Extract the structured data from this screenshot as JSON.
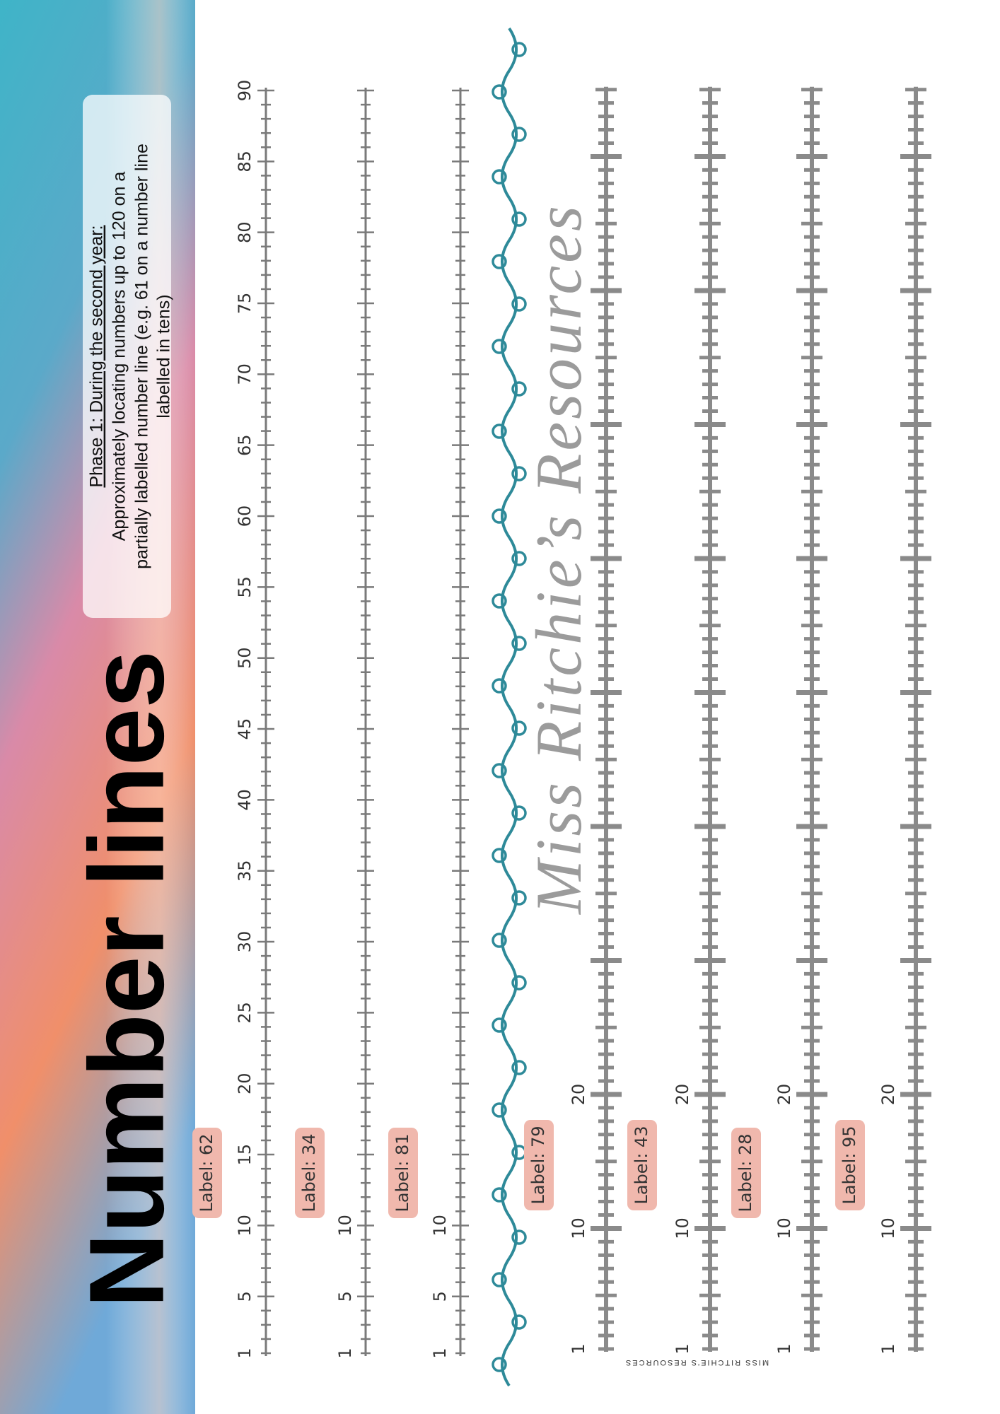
{
  "header": {
    "title": "Number lines",
    "phase_title": "Phase 1: During the second year:",
    "phase_lines": [
      "Approximately locating numbers up to 120 on a",
      "partially labelled number line (e.g. 61 on a number line",
      "labelled in tens)"
    ]
  },
  "number_lines": [
    {
      "label": "Label: 62",
      "tick_labels": [
        1,
        5,
        10,
        15,
        20,
        25,
        30,
        35,
        40,
        45,
        50,
        55,
        60,
        65,
        70,
        75,
        80,
        85,
        90
      ]
    },
    {
      "label": "Label: 34",
      "tick_labels": [
        1,
        5,
        10
      ]
    },
    {
      "label": "Label: 81",
      "tick_labels": [
        1,
        5,
        10
      ]
    },
    {
      "label": "Label: 79",
      "tick_labels": [
        1,
        10,
        20
      ]
    },
    {
      "label": "Label: 43",
      "tick_labels": [
        1,
        10,
        20
      ]
    },
    {
      "label": "Label: 28",
      "tick_labels": [
        1,
        10,
        20
      ]
    },
    {
      "label": "Label: 95",
      "tick_labels": [
        1,
        10,
        20
      ]
    }
  ],
  "watermark": "Miss Ritchie’s Resources",
  "footer": "MISS RITCHIE'S RESOURCES"
}
